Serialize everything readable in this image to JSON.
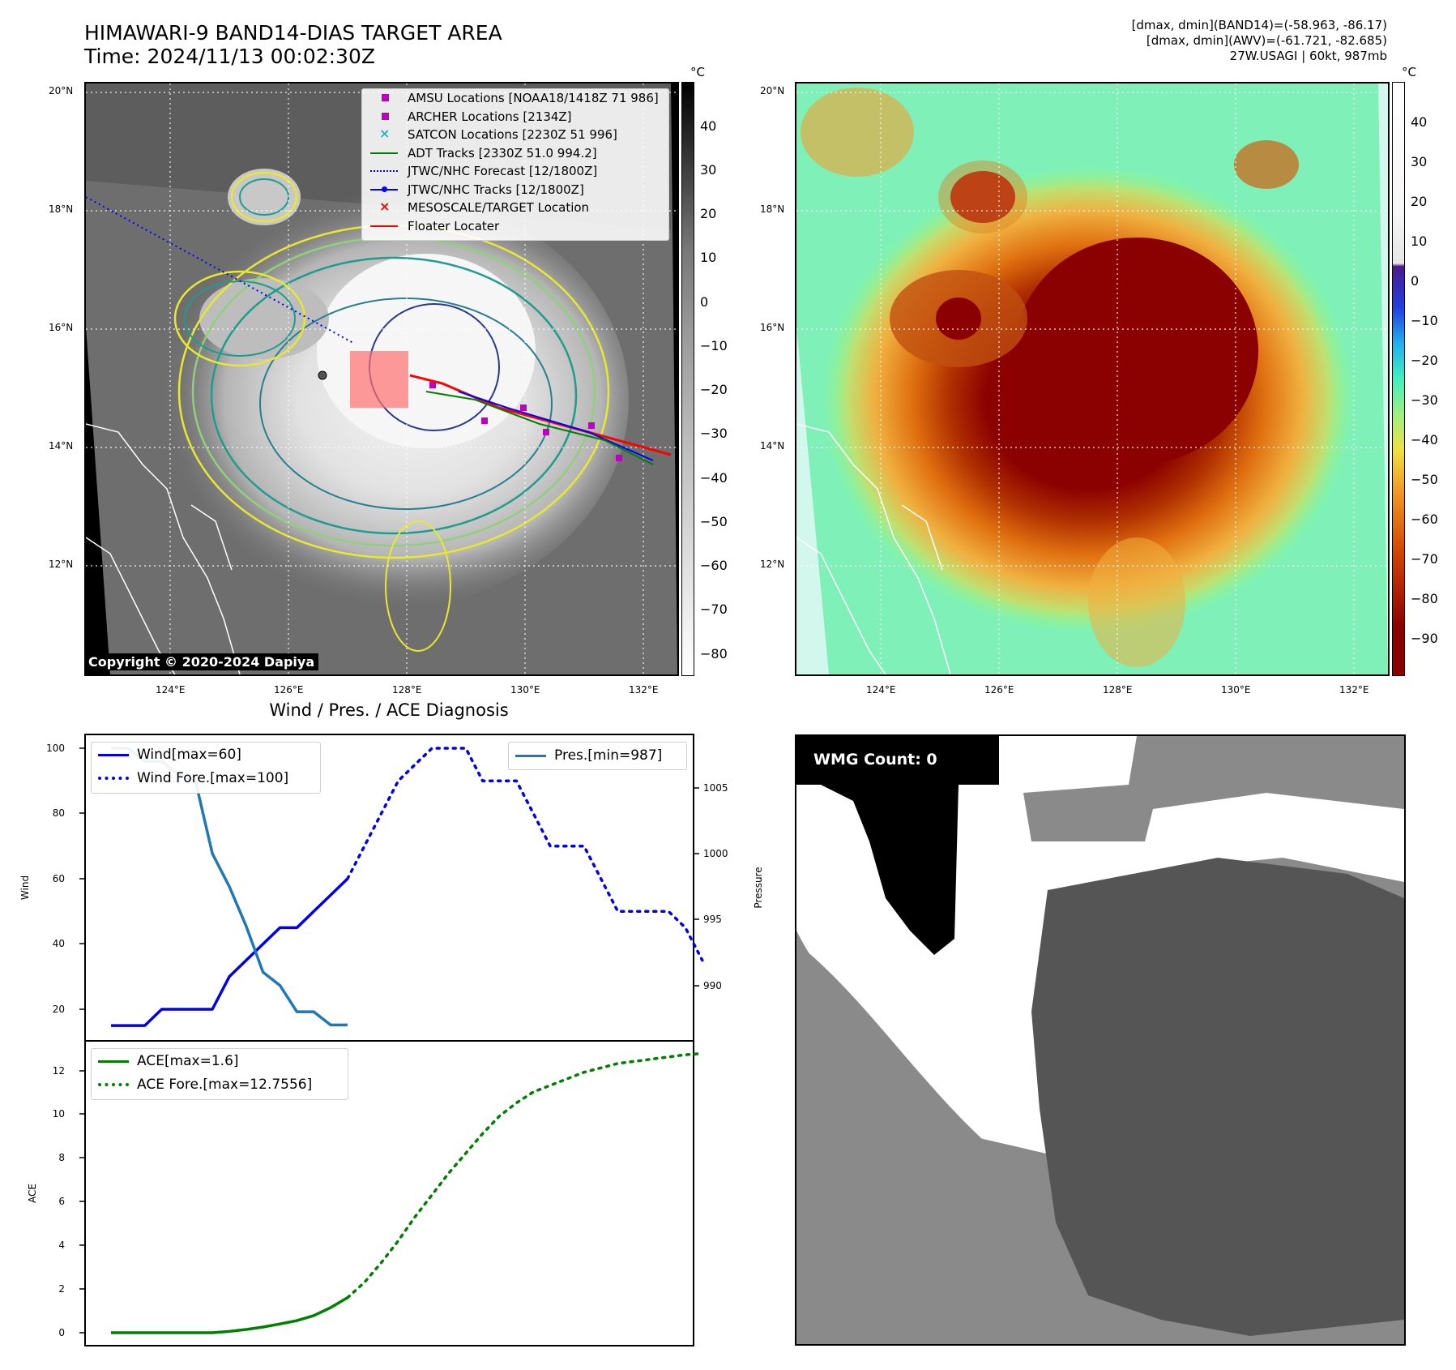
{
  "header": {
    "title_line1": "HIMAWARI-9 BAND14-DIAS TARGET AREA",
    "title_line2": "Time: 2024/11/13 00:02:30Z",
    "info_line1": "[dmax, dmin](BAND14)=(-58.963, -86.17)",
    "info_line2": "[dmax, dmin](AWV)=(-61.721, -82.685)",
    "info_line3": "27W.USAGI | 60kt, 987mb"
  },
  "maps": {
    "lat_labels": [
      "20°N",
      "18°N",
      "16°N",
      "14°N",
      "12°N"
    ],
    "lon_labels": [
      "124°E",
      "126°E",
      "128°E",
      "130°E",
      "132°E"
    ],
    "copyright": "Copyright © 2020-2024 Dapiya",
    "colorbar_unit": "°C",
    "gray_colorbar_ticks": [
      "40",
      "30",
      "20",
      "10",
      "0",
      "−10",
      "−20",
      "−30",
      "−40",
      "−50",
      "−60",
      "−70",
      "−80"
    ],
    "color_colorbar_ticks": [
      "40",
      "30",
      "20",
      "10",
      "0",
      "−10",
      "−20",
      "−30",
      "−40",
      "−50",
      "−60",
      "−70",
      "−80",
      "−90"
    ],
    "legend": [
      {
        "label": "AMSU Locations [NOAA18/1418Z 71 986]",
        "color": "#c000c0",
        "icon": "square-marker-icon"
      },
      {
        "label": "ARCHER Locations [2134Z]",
        "color": "#c000c0",
        "icon": "square-marker-icon"
      },
      {
        "label": "SATCON Locations [2230Z 51 996]",
        "color": "#20b8b8",
        "icon": "x-marker-icon"
      },
      {
        "label": "ADT Tracks [2330Z 51.0 994.2]",
        "color": "#008000",
        "icon": "solid-line-icon"
      },
      {
        "label": "JTWC/NHC Forecast [12/1800Z]",
        "color": "#0000ff",
        "icon": "dotted-line-icon"
      },
      {
        "label": "JTWC/NHC Tracks [12/1800Z]",
        "color": "#0000ff",
        "icon": "line-dot-icon"
      },
      {
        "label": "MESOSCALE/TARGET Location",
        "color": "#ff0000",
        "icon": "x-marker-icon"
      },
      {
        "label": "Floater Locater",
        "color": "#ff0000",
        "icon": "solid-line-icon"
      }
    ]
  },
  "diagnosis": {
    "title": "Wind / Pres. / ACE Diagnosis",
    "wind_legend": "Wind[max=60]",
    "wind_fore_legend": "Wind Fore.[max=100]",
    "pres_legend": "Pres.[min=987]",
    "ace_legend": "ACE[max=1.6]",
    "ace_fore_legend": "ACE Fore.[max=12.7556]",
    "wind_axis_label": "Wind",
    "pres_axis_label": "Pressure",
    "ace_axis_label": "ACE",
    "wind_ticks": [
      "100",
      "80",
      "60",
      "40",
      "20"
    ],
    "pres_ticks": [
      "1005",
      "1000",
      "995",
      "990"
    ],
    "ace_ticks": [
      "12",
      "10",
      "8",
      "6",
      "4",
      "2",
      "0"
    ]
  },
  "wmg": {
    "count_label": "WMG Count: 0"
  },
  "colors": {
    "wind": "#0000ee",
    "pressure": "#1f77b4",
    "ace": "#008000"
  },
  "chart_data": [
    {
      "type": "line",
      "title": "Wind / Pres. / ACE Diagnosis",
      "ylabel": "Wind",
      "ylim": [
        15,
        101
      ],
      "x": [
        0,
        1,
        2,
        3,
        4,
        5,
        6,
        7,
        8,
        9,
        10,
        11,
        12,
        13,
        14,
        15,
        16,
        17,
        18,
        19,
        20,
        21,
        22,
        23,
        24,
        25,
        26,
        27,
        28,
        29,
        30,
        31,
        32,
        33,
        34,
        35
      ],
      "series": [
        {
          "name": "Wind[max=60]",
          "x": [
            0,
            1,
            2,
            3,
            4,
            5,
            6,
            7,
            8,
            9,
            10,
            11,
            12,
            13,
            14
          ],
          "values": [
            15,
            15,
            15,
            20,
            20,
            20,
            20,
            30,
            35,
            40,
            45,
            45,
            50,
            55,
            60
          ]
        },
        {
          "name": "Wind Fore.[max=100]",
          "x": [
            14,
            15,
            16,
            17,
            18,
            19,
            20,
            21,
            22,
            23,
            24,
            25,
            26,
            27,
            28,
            29,
            30,
            31,
            32,
            33,
            34,
            35
          ],
          "values": [
            60,
            70,
            80,
            90,
            95,
            100,
            100,
            100,
            90,
            90,
            90,
            80,
            70,
            70,
            70,
            60,
            50,
            50,
            50,
            50,
            45,
            35
          ]
        }
      ]
    },
    {
      "type": "line",
      "ylabel": "Pressure",
      "ylim": [
        986.5,
        1008
      ],
      "series": [
        {
          "name": "Pres.[min=987]",
          "x": [
            0,
            1,
            2,
            3,
            4,
            5,
            6,
            7,
            8,
            9,
            10,
            11,
            12,
            13,
            14
          ],
          "values": [
            1008,
            1008,
            1007,
            1007,
            1006,
            1005.5,
            1000,
            997.5,
            994.5,
            991,
            990,
            988,
            988,
            987,
            987
          ]
        }
      ]
    },
    {
      "type": "line",
      "ylabel": "ACE",
      "ylim": [
        -0.6,
        13.6
      ],
      "series": [
        {
          "name": "ACE[max=1.6]",
          "x": [
            0,
            1,
            2,
            3,
            4,
            5,
            6,
            7,
            8,
            9,
            10,
            11,
            12,
            13,
            14
          ],
          "values": [
            0,
            0,
            0,
            0,
            0,
            0,
            0,
            0.06,
            0.15,
            0.26,
            0.4,
            0.55,
            0.78,
            1.15,
            1.6
          ]
        },
        {
          "name": "ACE Fore.[max=12.7556]",
          "x": [
            14,
            15,
            16,
            17,
            18,
            19,
            20,
            21,
            22,
            23,
            24,
            25,
            26,
            27,
            28,
            29,
            30,
            31,
            32,
            33,
            34,
            35
          ],
          "values": [
            1.6,
            2.3,
            3.2,
            4.2,
            5.3,
            6.3,
            7.3,
            8.2,
            9.1,
            9.9,
            10.5,
            11.0,
            11.3,
            11.6,
            11.9,
            12.1,
            12.3,
            12.4,
            12.5,
            12.6,
            12.7,
            12.7556
          ]
        }
      ]
    }
  ]
}
